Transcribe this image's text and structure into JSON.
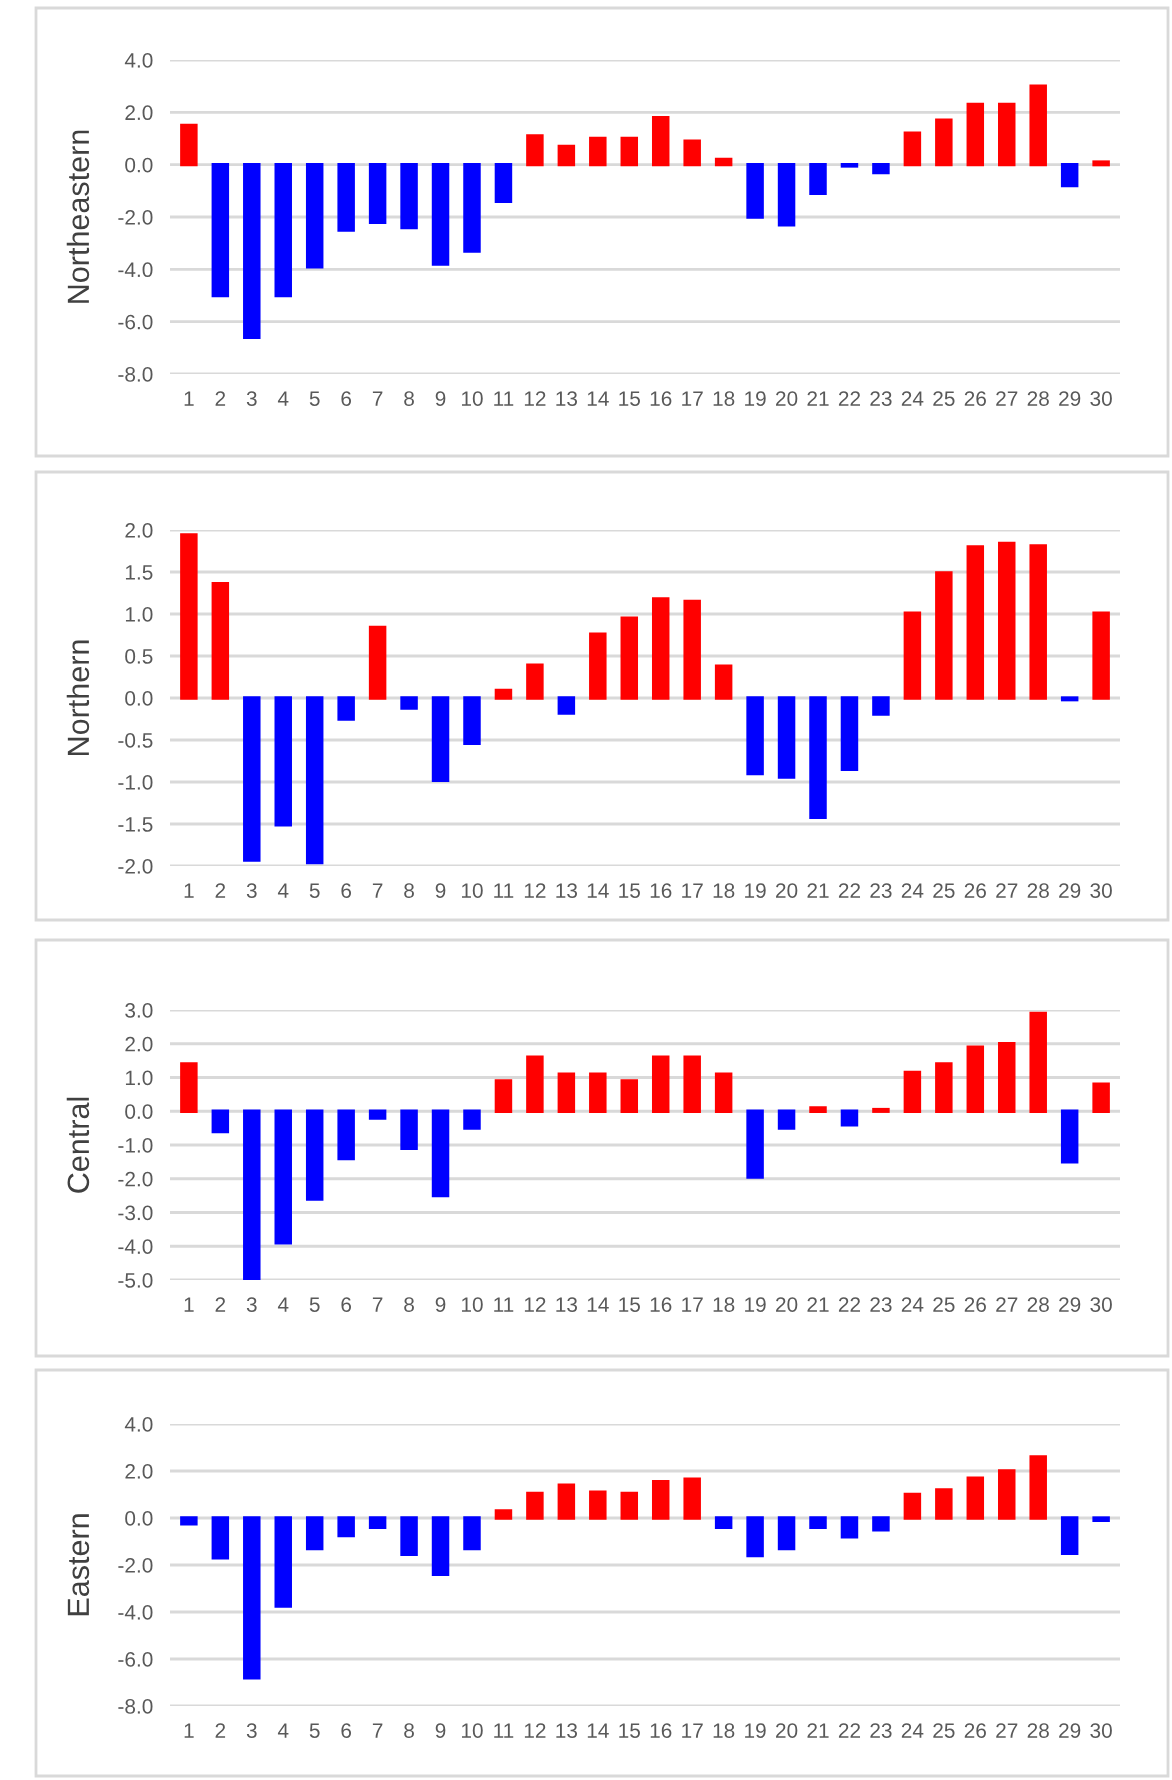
{
  "chart_data": [
    {
      "type": "bar",
      "ylabel": "Northeastern",
      "categories": [
        "1",
        "2",
        "3",
        "4",
        "5",
        "6",
        "7",
        "8",
        "9",
        "10",
        "11",
        "12",
        "13",
        "14",
        "15",
        "16",
        "17",
        "18",
        "19",
        "20",
        "21",
        "22",
        "23",
        "24",
        "25",
        "26",
        "27",
        "28",
        "29",
        "30"
      ],
      "values": [
        1.5,
        -5.0,
        -6.6,
        -5.0,
        -3.9,
        -2.5,
        -2.2,
        -2.4,
        -3.8,
        -3.3,
        -1.4,
        1.1,
        0.7,
        1.0,
        1.0,
        1.8,
        0.9,
        0.2,
        -2.0,
        -2.3,
        -1.1,
        -0.05,
        -0.3,
        1.2,
        1.7,
        2.3,
        2.3,
        3.0,
        -0.8,
        0.1
      ],
      "colors": [
        "#ff0000",
        "#0000ff",
        "#0000ff",
        "#0000ff",
        "#0000ff",
        "#0000ff",
        "#0000ff",
        "#0000ff",
        "#0000ff",
        "#0000ff",
        "#0000ff",
        "#ff0000",
        "#ff0000",
        "#ff0000",
        "#ff0000",
        "#ff0000",
        "#ff0000",
        "#ff0000",
        "#0000ff",
        "#0000ff",
        "#0000ff",
        "#0000ff",
        "#0000ff",
        "#ff0000",
        "#ff0000",
        "#ff0000",
        "#ff0000",
        "#ff0000",
        "#0000ff",
        "#ff0000"
      ],
      "ylim": [
        -8,
        4
      ],
      "yticks": [
        {
          "value": -8,
          "label": "-8.0"
        },
        {
          "value": -6,
          "label": "-6.0"
        },
        {
          "value": -4,
          "label": "-4.0"
        },
        {
          "value": -2,
          "label": "-2.0"
        },
        {
          "value": 0,
          "label": "0.0"
        },
        {
          "value": 2,
          "label": "2.0"
        },
        {
          "value": 4,
          "label": "4.0"
        }
      ],
      "grid": "y"
    },
    {
      "type": "bar",
      "ylabel": "Northern",
      "categories": [
        "1",
        "2",
        "3",
        "4",
        "5",
        "6",
        "7",
        "8",
        "9",
        "10",
        "11",
        "12",
        "13",
        "14",
        "15",
        "16",
        "17",
        "18",
        "19",
        "20",
        "21",
        "22",
        "23",
        "24",
        "25",
        "26",
        "27",
        "28",
        "29",
        "30"
      ],
      "values": [
        1.94,
        1.36,
        -1.93,
        -1.51,
        -1.96,
        -0.25,
        0.84,
        -0.12,
        -0.98,
        -0.54,
        0.09,
        0.39,
        -0.18,
        0.76,
        0.95,
        1.18,
        1.15,
        0.38,
        -0.9,
        -0.94,
        -1.42,
        -0.85,
        -0.19,
        1.01,
        1.49,
        1.8,
        1.84,
        1.81,
        -0.02,
        1.01
      ],
      "colors": [
        "#ff0000",
        "#ff0000",
        "#0000ff",
        "#0000ff",
        "#0000ff",
        "#0000ff",
        "#ff0000",
        "#0000ff",
        "#0000ff",
        "#0000ff",
        "#ff0000",
        "#ff0000",
        "#0000ff",
        "#ff0000",
        "#ff0000",
        "#ff0000",
        "#ff0000",
        "#ff0000",
        "#0000ff",
        "#0000ff",
        "#0000ff",
        "#0000ff",
        "#0000ff",
        "#ff0000",
        "#ff0000",
        "#ff0000",
        "#ff0000",
        "#ff0000",
        "#0000ff",
        "#ff0000"
      ],
      "ylim": [
        -2,
        2
      ],
      "yticks": [
        {
          "value": -2,
          "label": "-2.0"
        },
        {
          "value": -1.5,
          "label": "-1.5"
        },
        {
          "value": -1,
          "label": "-1.0"
        },
        {
          "value": -0.5,
          "label": "-0.5"
        },
        {
          "value": 0,
          "label": "0.0"
        },
        {
          "value": 0.5,
          "label": "0.5"
        },
        {
          "value": 1,
          "label": "1.0"
        },
        {
          "value": 1.5,
          "label": "1.5"
        },
        {
          "value": 2,
          "label": "2.0"
        }
      ],
      "grid": "y"
    },
    {
      "type": "bar",
      "ylabel": "Central",
      "categories": [
        "1",
        "2",
        "3",
        "4",
        "5",
        "6",
        "7",
        "8",
        "9",
        "10",
        "11",
        "12",
        "13",
        "14",
        "15",
        "16",
        "17",
        "18",
        "19",
        "20",
        "21",
        "22",
        "23",
        "24",
        "25",
        "26",
        "27",
        "28",
        "29",
        "30"
      ],
      "values": [
        1.4,
        -0.6,
        -4.95,
        -3.9,
        -2.6,
        -1.4,
        -0.2,
        -1.1,
        -2.5,
        -0.5,
        0.9,
        1.6,
        1.1,
        1.1,
        0.9,
        1.6,
        1.6,
        1.1,
        -1.95,
        -0.5,
        0.1,
        -0.4,
        0.05,
        1.15,
        1.4,
        1.9,
        2.0,
        2.9,
        -1.5,
        0.8
      ],
      "colors": [
        "#ff0000",
        "#0000ff",
        "#0000ff",
        "#0000ff",
        "#0000ff",
        "#0000ff",
        "#0000ff",
        "#0000ff",
        "#0000ff",
        "#0000ff",
        "#ff0000",
        "#ff0000",
        "#ff0000",
        "#ff0000",
        "#ff0000",
        "#ff0000",
        "#ff0000",
        "#ff0000",
        "#0000ff",
        "#0000ff",
        "#ff0000",
        "#0000ff",
        "#ff0000",
        "#ff0000",
        "#ff0000",
        "#ff0000",
        "#ff0000",
        "#ff0000",
        "#0000ff",
        "#ff0000"
      ],
      "ylim": [
        -5,
        3
      ],
      "yticks": [
        {
          "value": -5,
          "label": "-5.0"
        },
        {
          "value": -4,
          "label": "-4.0"
        },
        {
          "value": -3,
          "label": "-3.0"
        },
        {
          "value": -2,
          "label": "-2.0"
        },
        {
          "value": -1,
          "label": "-1.0"
        },
        {
          "value": 0,
          "label": "0.0"
        },
        {
          "value": 1,
          "label": "1.0"
        },
        {
          "value": 2,
          "label": "2.0"
        },
        {
          "value": 3,
          "label": "3.0"
        }
      ],
      "grid": "y"
    },
    {
      "type": "bar",
      "ylabel": "Eastern",
      "categories": [
        "1",
        "2",
        "3",
        "4",
        "5",
        "6",
        "7",
        "8",
        "9",
        "10",
        "11",
        "12",
        "13",
        "14",
        "15",
        "16",
        "17",
        "18",
        "19",
        "20",
        "21",
        "22",
        "23",
        "24",
        "25",
        "26",
        "27",
        "28",
        "29",
        "30"
      ],
      "values": [
        -0.25,
        -1.7,
        -6.8,
        -3.75,
        -1.3,
        -0.75,
        -0.4,
        -1.55,
        -2.4,
        -1.3,
        0.3,
        1.05,
        1.4,
        1.1,
        1.05,
        1.55,
        1.65,
        -0.4,
        -1.6,
        -1.3,
        -0.4,
        -0.8,
        -0.5,
        1.0,
        1.2,
        1.7,
        2.0,
        2.6,
        -1.5,
        -0.1
      ],
      "colors": [
        "#0000ff",
        "#0000ff",
        "#0000ff",
        "#0000ff",
        "#0000ff",
        "#0000ff",
        "#0000ff",
        "#0000ff",
        "#0000ff",
        "#0000ff",
        "#ff0000",
        "#ff0000",
        "#ff0000",
        "#ff0000",
        "#ff0000",
        "#ff0000",
        "#ff0000",
        "#0000ff",
        "#0000ff",
        "#0000ff",
        "#0000ff",
        "#0000ff",
        "#0000ff",
        "#ff0000",
        "#ff0000",
        "#ff0000",
        "#ff0000",
        "#ff0000",
        "#0000ff",
        "#0000ff"
      ],
      "ylim": [
        -8,
        4
      ],
      "yticks": [
        {
          "value": -8,
          "label": "-8.0"
        },
        {
          "value": -6,
          "label": "-6.0"
        },
        {
          "value": -4,
          "label": "-4.0"
        },
        {
          "value": -2,
          "label": "-2.0"
        },
        {
          "value": 0,
          "label": "0.0"
        },
        {
          "value": 2,
          "label": "2.0"
        },
        {
          "value": 4,
          "label": "4.0"
        }
      ],
      "grid": "y"
    }
  ]
}
